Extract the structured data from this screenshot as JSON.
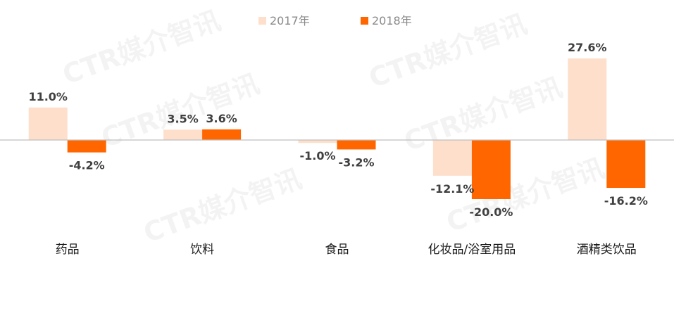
{
  "chart_data": {
    "type": "bar",
    "categories": [
      "药品",
      "饮料",
      "食品",
      "化妆品/浴室用品",
      "酒精类饮品"
    ],
    "series": [
      {
        "name": "2017年",
        "values": [
          11.0,
          3.5,
          -1.0,
          -12.1,
          27.6
        ],
        "labels": [
          "11.0%",
          "3.5%",
          "-1.0%",
          "-12.1%",
          "27.6%"
        ],
        "color": "#FDDFCB"
      },
      {
        "name": "2018年",
        "values": [
          -4.2,
          3.6,
          -3.2,
          -20.0,
          -16.2
        ],
        "labels": [
          "-4.2%",
          "3.6%",
          "-3.2%",
          "-20.0%",
          "-16.2%"
        ],
        "color": "#FF6600"
      }
    ],
    "unit": "%",
    "ylim": [
      -30,
      40
    ],
    "grid": false,
    "legend_position": "top-center",
    "zero_line_color": "#bfbfbf",
    "watermark_text": "CTR媒介智讯"
  }
}
